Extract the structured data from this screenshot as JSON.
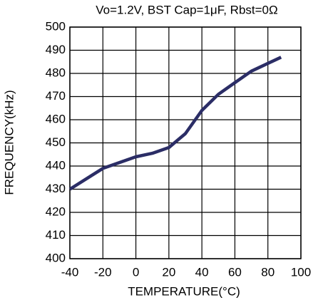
{
  "chart_data": {
    "type": "line",
    "title": "Vo=1.2V, BST Cap=1μF, Rbst=0Ω",
    "xlabel": "TEMPERATURE(°C)",
    "ylabel": "FREQUENCY(kHz)",
    "x": [
      -40,
      -20,
      0,
      10,
      20,
      30,
      40,
      50,
      60,
      70,
      88
    ],
    "series": [
      {
        "name": "Frequency",
        "color": "#2b2d66",
        "values": [
          430,
          439,
          444,
          445.5,
          448,
          454,
          464,
          471,
          476,
          481,
          487
        ]
      }
    ],
    "xlim": [
      -40,
      100
    ],
    "xticks": [
      -40,
      -20,
      0,
      20,
      40,
      60,
      80,
      100
    ],
    "ylim": [
      400,
      500
    ],
    "yticks": [
      400,
      410,
      420,
      430,
      440,
      450,
      460,
      470,
      480,
      490,
      500
    ],
    "grid": true
  }
}
